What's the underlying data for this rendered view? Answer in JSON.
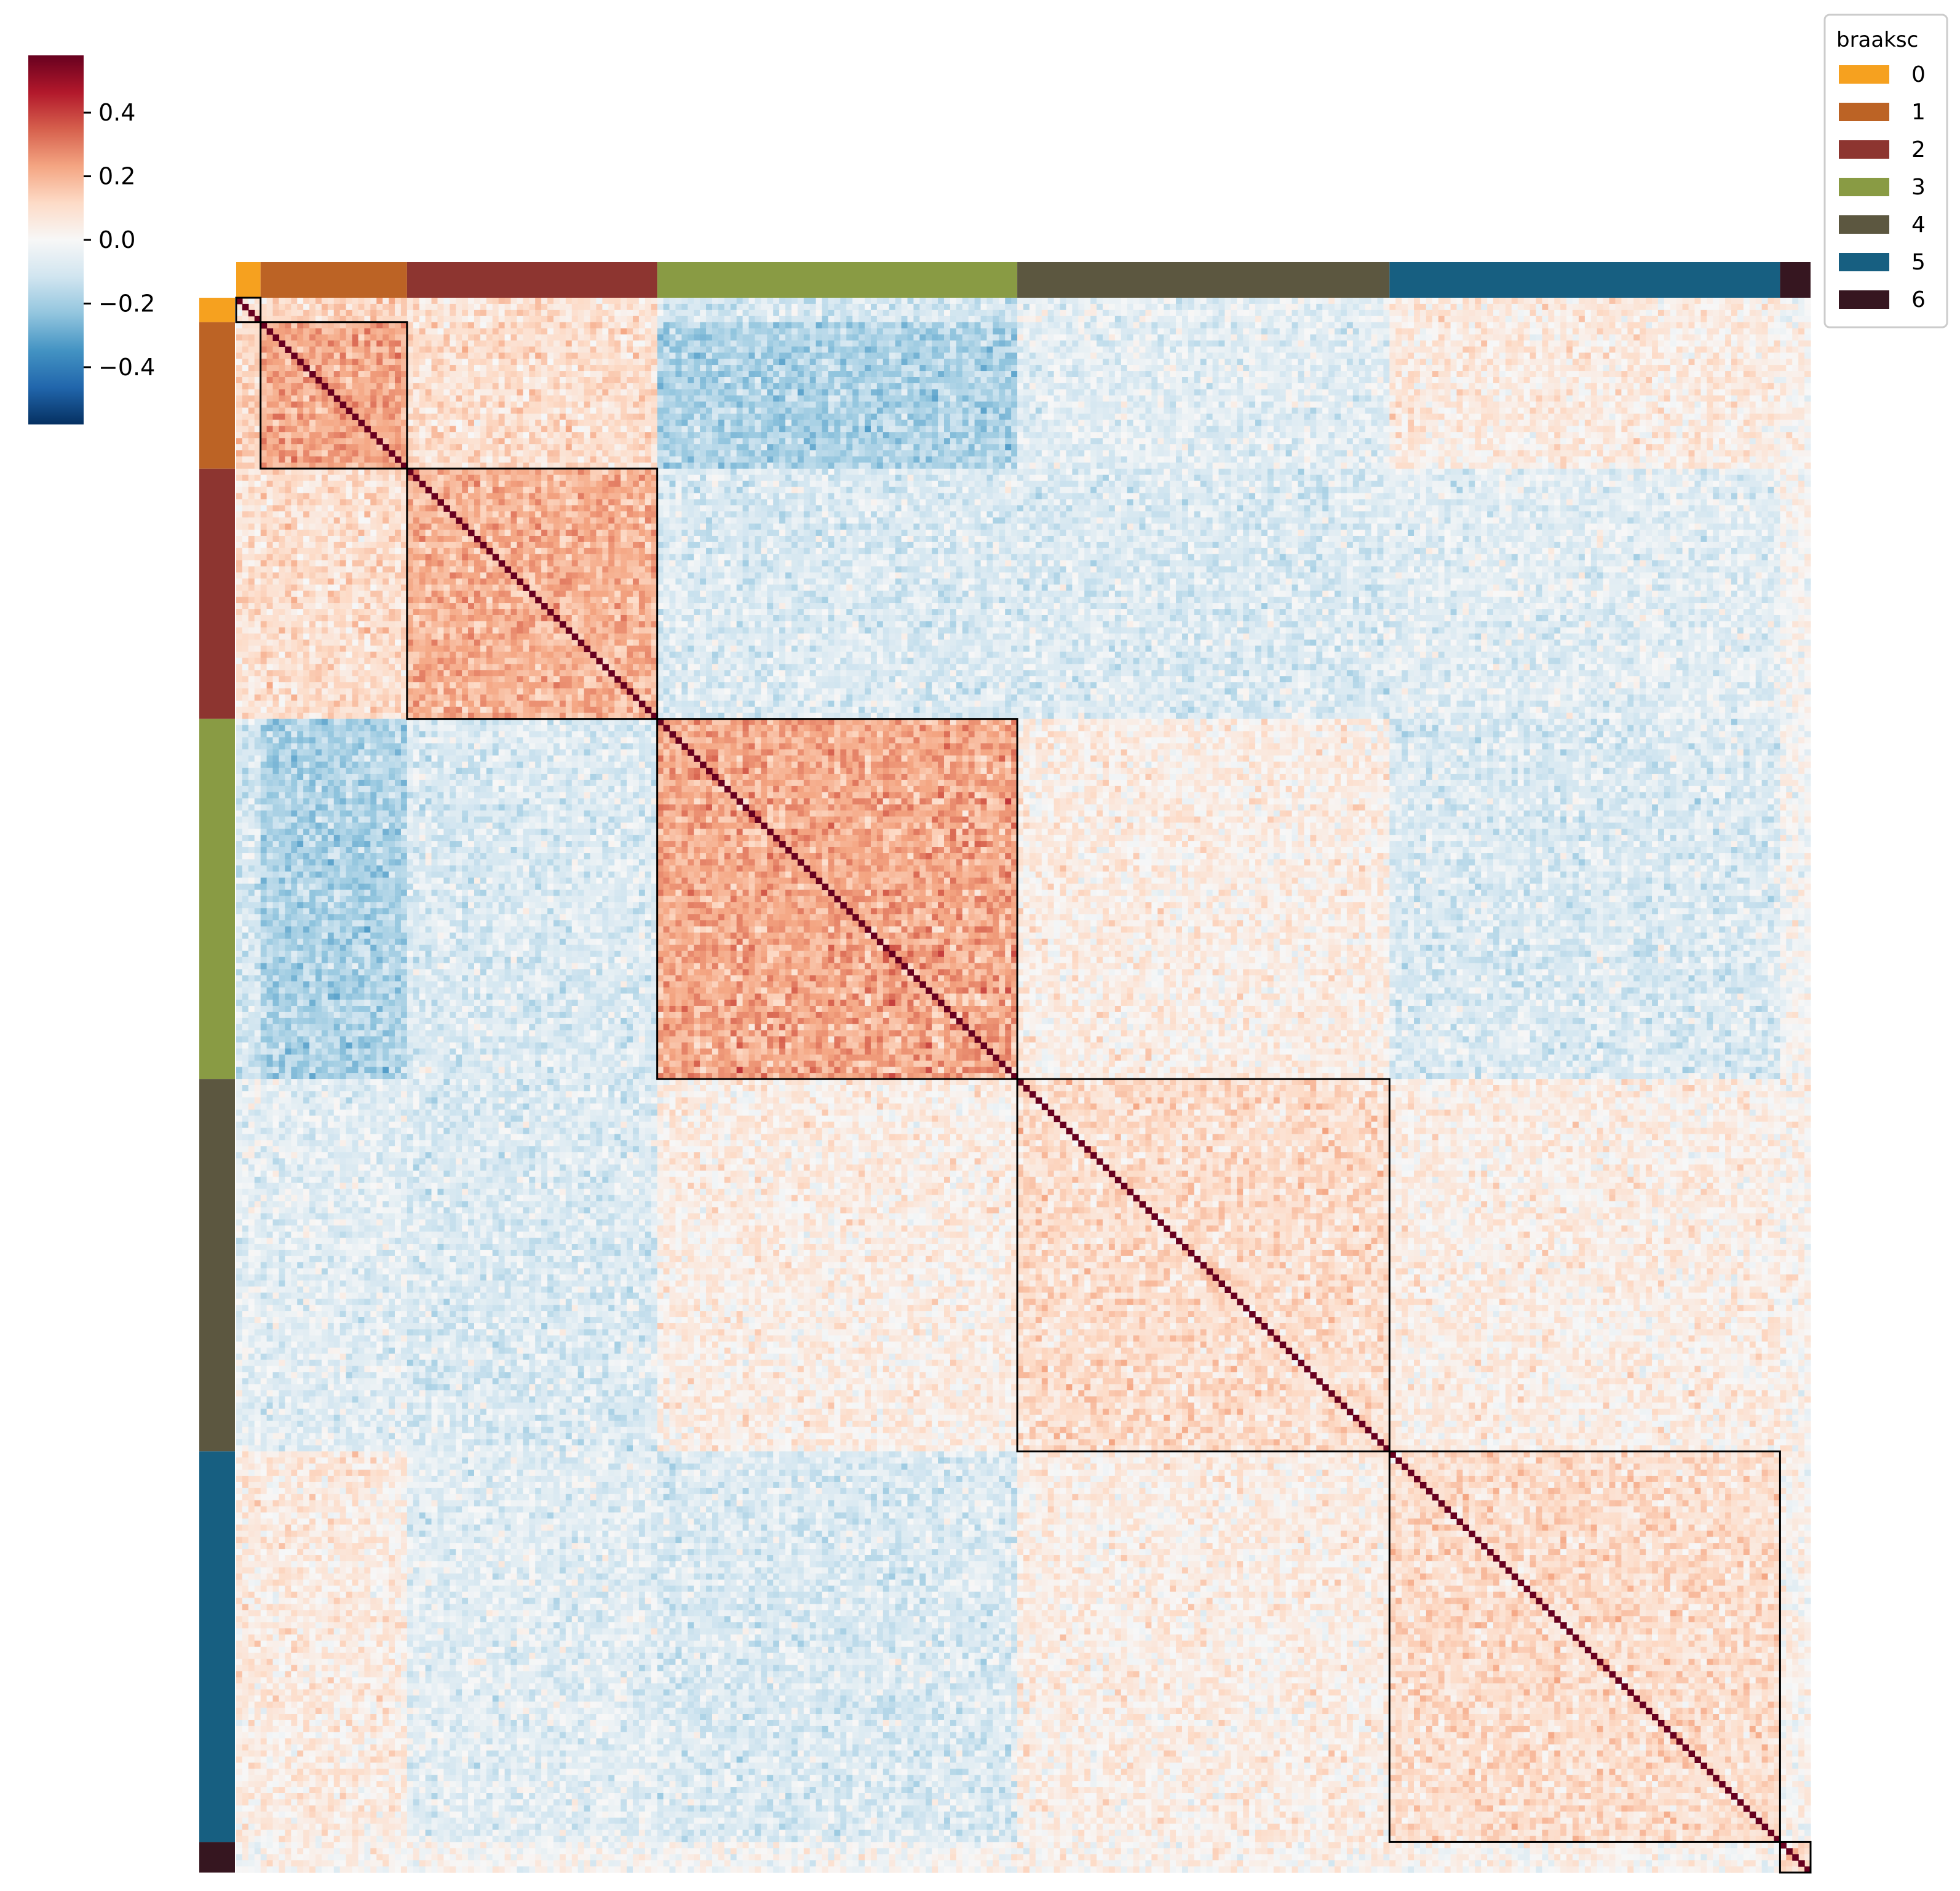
{
  "chart_data": {
    "type": "heatmap",
    "title": "",
    "xlabel": "",
    "ylabel": "",
    "colormap": "RdBu_r",
    "colorbar": {
      "vmin": -0.58,
      "vmax": 0.58,
      "ticks": [
        0.4,
        0.2,
        0.0,
        -0.2,
        -0.4
      ],
      "tick_labels": [
        "0.4",
        "0.2",
        "0.0",
        "−0.2",
        "−0.4"
      ]
    },
    "legend": {
      "title": "braaksc",
      "position": "top-right",
      "entries": [
        {
          "label": "0",
          "color": "#F6A11F"
        },
        {
          "label": "1",
          "color": "#BC6325"
        },
        {
          "label": "2",
          "color": "#8D3530"
        },
        {
          "label": "3",
          "color": "#899B44"
        },
        {
          "label": "4",
          "color": "#5C5740"
        },
        {
          "label": "5",
          "color": "#175F81"
        },
        {
          "label": "6",
          "color": "#361620"
        }
      ]
    },
    "groups": {
      "variable": "braaksc",
      "order": [
        "0",
        "1",
        "2",
        "3",
        "4",
        "5",
        "6"
      ],
      "relative_sizes": [
        4,
        24,
        41,
        59,
        61,
        64,
        5
      ],
      "outlined_on_diagonal": true
    },
    "diagonal_value": 1.0,
    "matrix_size": 258,
    "block_mean_correlations": [
      [
        0.1,
        0.12,
        0.08,
        -0.1,
        -0.05,
        0.05,
        0.0
      ],
      [
        0.12,
        0.22,
        0.1,
        -0.18,
        -0.06,
        0.05,
        0.02
      ],
      [
        0.08,
        0.1,
        0.2,
        -0.08,
        -0.08,
        -0.06,
        0.0
      ],
      [
        -0.1,
        -0.18,
        -0.08,
        0.22,
        0.04,
        -0.08,
        0.0
      ],
      [
        -0.05,
        -0.06,
        -0.08,
        0.04,
        0.1,
        0.04,
        0.02
      ],
      [
        0.05,
        0.05,
        -0.06,
        -0.08,
        0.04,
        0.1,
        0.02
      ],
      [
        0.0,
        0.02,
        0.0,
        0.0,
        0.02,
        0.02,
        0.1
      ]
    ]
  }
}
